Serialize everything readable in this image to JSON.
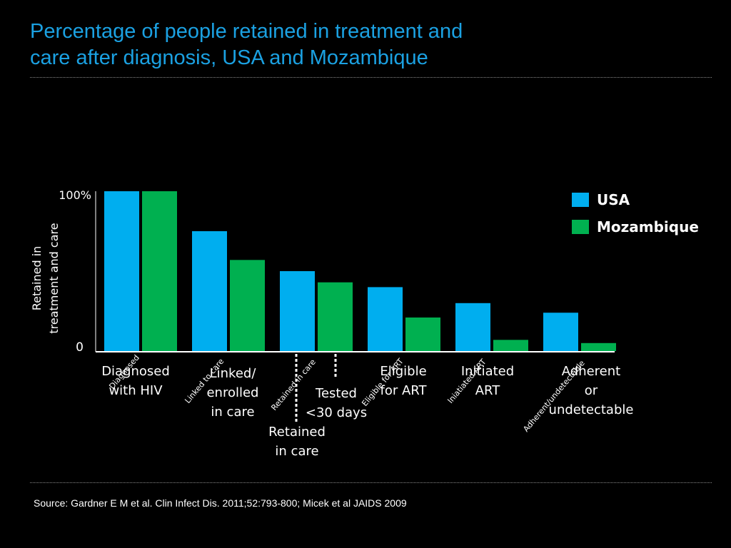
{
  "title": {
    "line1": "Percentage of people retained in treatment and",
    "line2": "care after diagnosis, USA and Mozambique"
  },
  "source": "Source: Gardner E M et al. Clin Infect Dis. 2011;52:793-800; Micek et al JAIDS 2009",
  "colors": {
    "background": "#000000",
    "title": "#1ba1e2",
    "usa": "#00aeef",
    "mozambique": "#00b050",
    "axis": "#ffffff"
  },
  "chart_data": {
    "type": "bar",
    "title": "Percentage of people retained in treatment and care after diagnosis, USA and Mozambique",
    "ylabel_lines": [
      "Retained in",
      "treatment and care"
    ],
    "ylim": [
      0,
      100
    ],
    "ytick_labels": [
      "0",
      "100%"
    ],
    "grid": false,
    "legend_position": "top-right",
    "categories": [
      "Diagnosed",
      "Linked to care",
      "Retained in care",
      "Eligible for ART",
      "Iniatiated ART",
      "Adherent/undetectable"
    ],
    "series": [
      {
        "name": "USA",
        "color": "#00aeef",
        "values": [
          100,
          75,
          50,
          40,
          30,
          24
        ]
      },
      {
        "name": "Mozambique",
        "color": "#00b050",
        "values": [
          100,
          57,
          43,
          21,
          7,
          5
        ]
      }
    ],
    "usa_stage_labels": [
      [
        "Diagnosed",
        "with HIV"
      ],
      [
        "Linked/",
        "enrolled",
        "in care"
      ],
      [
        "Retained",
        "in care"
      ],
      [
        "Eligible",
        "for ART"
      ],
      [
        "Initiated",
        "ART"
      ],
      [
        "Adherent",
        "or",
        "undetectable"
      ]
    ],
    "mozambique_stage_labels": [
      [
        "Tested",
        "<30 days"
      ]
    ]
  }
}
